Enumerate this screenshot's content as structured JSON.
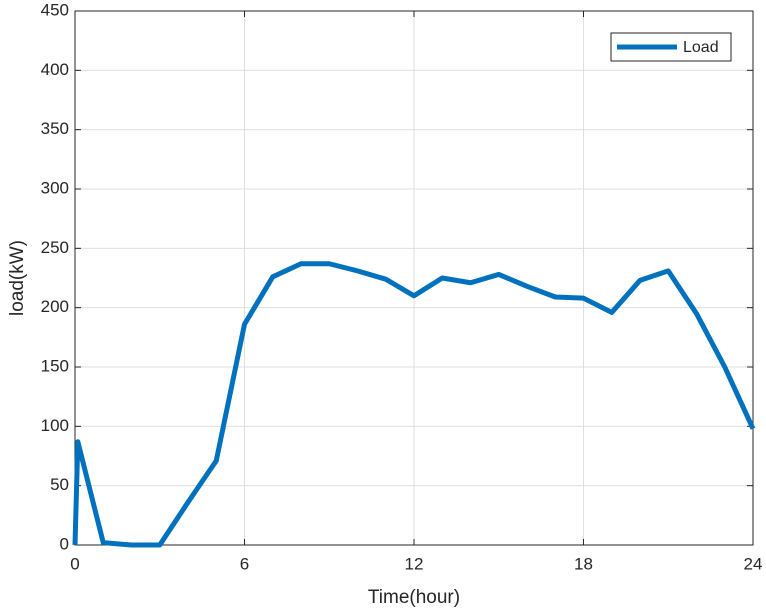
{
  "chart_data": {
    "type": "line",
    "xlabel": "Time(hour)",
    "ylabel": "load(kW)",
    "x": [
      0,
      0.1,
      1,
      2,
      3,
      4,
      5,
      6,
      7,
      8,
      9,
      10,
      11,
      12,
      13,
      14,
      15,
      16,
      17,
      18,
      19,
      20,
      21,
      22,
      23,
      24
    ],
    "series": [
      {
        "name": "Load",
        "color": "#0072bd",
        "values": [
          0,
          87,
          2,
          0,
          0,
          36,
          71,
          186,
          226,
          237,
          237,
          231,
          224,
          210,
          225,
          221,
          228,
          218,
          209,
          208,
          196,
          223,
          231,
          195,
          150,
          98
        ]
      }
    ],
    "xlim": [
      0,
      24
    ],
    "xticks": [
      0,
      6,
      12,
      18,
      24
    ],
    "ylim": [
      0,
      450
    ],
    "yticks": [
      0,
      50,
      100,
      150,
      200,
      250,
      300,
      350,
      400,
      450
    ],
    "grid": true,
    "legend": "northeast"
  }
}
